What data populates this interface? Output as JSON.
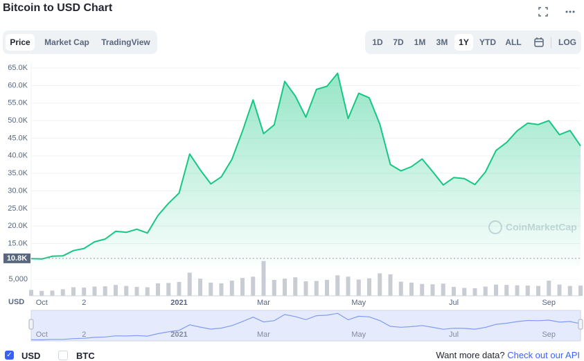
{
  "header": {
    "title": "Bitcoin to USD Chart"
  },
  "tabs": [
    "Price",
    "Market Cap",
    "TradingView"
  ],
  "ranges": [
    "1D",
    "7D",
    "1M",
    "3M",
    "1Y",
    "YTD",
    "ALL"
  ],
  "log_button": "LOG",
  "chart_data": {
    "type": "line",
    "color": "#16c784",
    "axis_label": "USD",
    "watermark": "CoinMarketCap",
    "categories": [
      null,
      "Oct",
      null,
      null,
      null,
      "2",
      null,
      null,
      null,
      null,
      null,
      null,
      null,
      null,
      "2021",
      null,
      null,
      null,
      null,
      null,
      null,
      null,
      "Mar",
      null,
      null,
      null,
      null,
      null,
      null,
      null,
      null,
      "May",
      null,
      null,
      null,
      null,
      null,
      null,
      null,
      null,
      "Jul",
      null,
      null,
      null,
      null,
      null,
      null,
      null,
      null,
      "Sep",
      null,
      null,
      null
    ],
    "values": [
      10700,
      10600,
      11400,
      11500,
      13000,
      13600,
      15500,
      16300,
      18500,
      18200,
      19100,
      18000,
      23000,
      26500,
      29400,
      40500,
      36000,
      32000,
      34000,
      39000,
      47000,
      55900,
      46300,
      48800,
      61200,
      57000,
      51000,
      58900,
      59800,
      63500,
      50600,
      57800,
      56500,
      49000,
      37500,
      35700,
      36900,
      39100,
      35500,
      31700,
      33800,
      33500,
      31800,
      35400,
      41500,
      43800,
      47100,
      49300,
      48900,
      50000,
      46000,
      47200,
      42800
    ],
    "ylim": [
      8400,
      66600
    ],
    "yticks": [
      {
        "value": 15000,
        "label": "15.0K"
      },
      {
        "value": 20000,
        "label": "20.0K"
      },
      {
        "value": 25000,
        "label": "25.0K"
      },
      {
        "value": 30000,
        "label": "30.0K"
      },
      {
        "value": 35000,
        "label": "35.0K"
      },
      {
        "value": 40000,
        "label": "40.0K"
      },
      {
        "value": 45000,
        "label": "45.0K"
      },
      {
        "value": 50000,
        "label": "50.0K"
      },
      {
        "value": 55000,
        "label": "55.0K"
      },
      {
        "value": 60000,
        "label": "60.0K"
      },
      {
        "value": 65000,
        "label": "65.0K"
      }
    ],
    "grid": true,
    "price_marker": {
      "value": 10800,
      "label": "10.8K"
    },
    "volume": {
      "color": "#c9ccd2",
      "ylim": [
        0,
        11500
      ],
      "yticks": [
        {
          "value": 5000,
          "label": "5,000"
        }
      ],
      "values": [
        1800,
        1500,
        1600,
        2000,
        2600,
        2500,
        2800,
        2900,
        3300,
        3000,
        2700,
        2600,
        3800,
        3900,
        4200,
        7000,
        5200,
        4000,
        3800,
        4600,
        5400,
        5800,
        10500,
        4800,
        5200,
        5600,
        4400,
        4500,
        4800,
        6200,
        5800,
        4900,
        5300,
        6800,
        6500,
        4300,
        4000,
        3600,
        3500,
        3700,
        2700,
        2400,
        2300,
        2800,
        3400,
        3300,
        3200,
        3100,
        3000,
        4600,
        3400,
        3000,
        3100
      ]
    }
  },
  "footer": {
    "currencies": [
      "USD",
      "BTC"
    ],
    "api_text": "Want more data?",
    "api_link": "Check out our API"
  }
}
